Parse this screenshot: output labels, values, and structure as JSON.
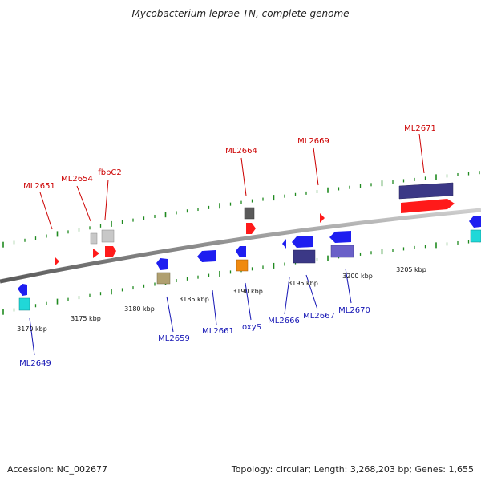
{
  "title": "Mycobacterium leprae TN, complete genome",
  "footer": {
    "accession": "Accession: NC_002677",
    "summary": "Topology: circular; Length: 3,268,203 bp; Genes: 1,655"
  },
  "colors": {
    "backbone": "#8c8c8c",
    "backbone_dark": "#555555",
    "tick": "#1f8a1f",
    "forward_label": "#cc0000",
    "reverse_label": "#1414b4"
  },
  "scale_labels": [
    "3170 kbp",
    "3175 kbp",
    "3180 kbp",
    "3185 kbp",
    "3190 kbp",
    "3195 kbp",
    "3200 kbp",
    "3205 kbp"
  ],
  "forward_genes": [
    {
      "name": "ML2651",
      "labeled": true
    },
    {
      "name": "ML2654",
      "labeled": true
    },
    {
      "name": "fbpC2",
      "labeled": true
    },
    {
      "name": "ML2664",
      "labeled": true
    },
    {
      "name": "ML2669",
      "labeled": true
    },
    {
      "name": "ML2671",
      "labeled": true
    }
  ],
  "reverse_genes": [
    {
      "name": "ML2649",
      "labeled": true
    },
    {
      "name": "ML2659",
      "labeled": true
    },
    {
      "name": "ML2661",
      "labeled": true
    },
    {
      "name": "oxyS",
      "labeled": true
    },
    {
      "name": "ML2666",
      "labeled": true
    },
    {
      "name": "ML2667",
      "labeled": true
    },
    {
      "name": "ML2670",
      "labeled": true
    }
  ]
}
